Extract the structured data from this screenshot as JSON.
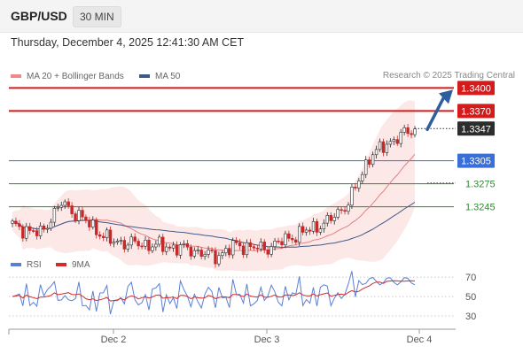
{
  "header": {
    "symbol": "GBP/USD",
    "timeframe": "30 MIN",
    "datetime": "Thursday, December 4, 2025 12:41:30 AM CET"
  },
  "legend_main": {
    "items": [
      {
        "label": "MA 20 + Bollinger Bands",
        "color": "#f08a8a"
      },
      {
        "label": "MA 50",
        "color": "#3d5a8a"
      }
    ],
    "credit": "Research © 2025 Trading Central"
  },
  "legend_rsi": {
    "items": [
      {
        "label": "RSI",
        "color": "#5b7fd6"
      },
      {
        "label": "9MA",
        "color": "#d42a2a"
      }
    ]
  },
  "chart_data": [
    {
      "type": "candlestick",
      "title": "",
      "ylim": [
        1.318,
        1.3405
      ],
      "x_ticks": [
        "Dec 2",
        "Dec 3",
        "Dec 4"
      ],
      "current_price": {
        "value": 1.3347,
        "label": "1.3347"
      },
      "levels": [
        {
          "value": 1.34,
          "label": "1.3400",
          "kind": "resistance",
          "color": "#d41c1c"
        },
        {
          "value": 1.337,
          "label": "1.3370",
          "kind": "resistance",
          "color": "#d41c1c"
        },
        {
          "value": 1.3305,
          "label": "1.3305",
          "kind": "pivot",
          "color": "#3a6fd8"
        },
        {
          "value": 1.3275,
          "label": "1.3275",
          "kind": "support",
          "color": "#2f8a2f"
        },
        {
          "value": 1.3245,
          "label": "1.3245",
          "kind": "support",
          "color": "#2f8a2f"
        }
      ],
      "arrow": {
        "direction": "up",
        "from": 1.3347,
        "to": 1.34,
        "color": "#2d5e9e"
      }
    },
    {
      "type": "line",
      "title": "RSI",
      "ylim": [
        20,
        82
      ],
      "y_ticks": [
        70,
        50,
        30
      ],
      "series": [
        {
          "name": "RSI",
          "color": "#5b7fd6"
        },
        {
          "name": "9MA",
          "color": "#d42a2a"
        }
      ]
    }
  ]
}
